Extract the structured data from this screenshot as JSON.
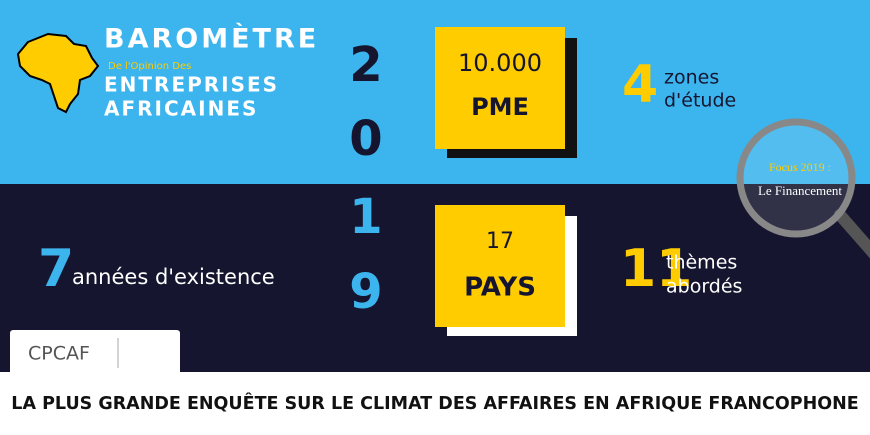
{
  "header": {
    "title": "BAROMÈTRE",
    "subtitle": "De l'Opinion Des",
    "line1": "ENTREPRISES",
    "line2": "AFRICAINES"
  },
  "year": [
    "2",
    "0",
    "1",
    "9"
  ],
  "boxes": [
    {
      "number": "10.000",
      "label": "PME"
    },
    {
      "number": "17",
      "label": "PAYS"
    }
  ],
  "stats": [
    {
      "number": "4",
      "lines": [
        "zones",
        "d'étude"
      ]
    },
    {
      "number": "7",
      "lines": [
        "années d'existence"
      ]
    },
    {
      "number": "11",
      "lines": [
        "thèmes",
        "abordés"
      ]
    }
  ],
  "focus": {
    "line1": "Focus 2019 :",
    "line2": "Le Financement"
  },
  "logo": {
    "name": "CPCAF"
  },
  "caption": "LA PLUS GRANDE ENQUÊTE SUR LE CLIMAT DES AFFAIRES EN AFRIQUE FRANCOPHONE"
}
